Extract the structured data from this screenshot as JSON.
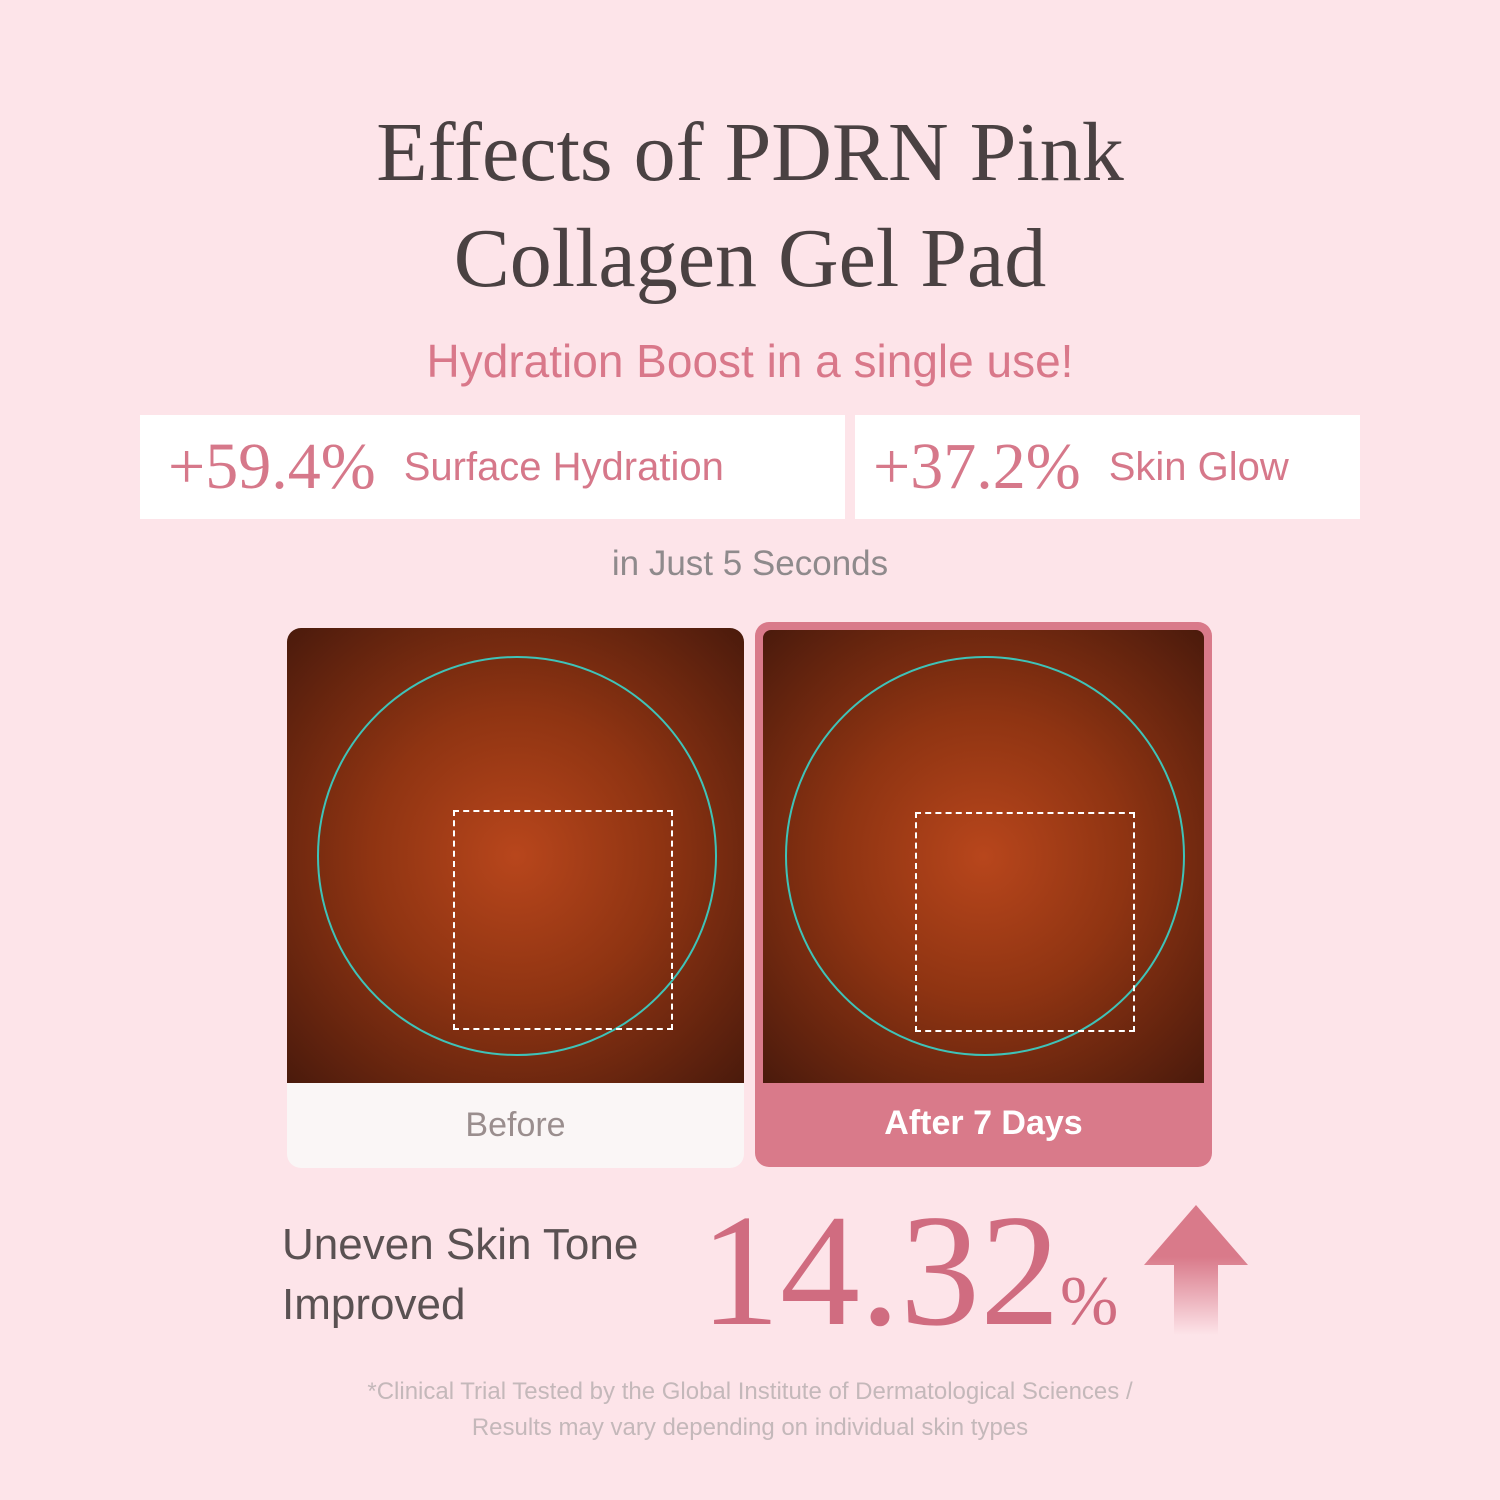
{
  "title": {
    "line1": "Effects of PDRN Pink",
    "line2": "Collagen Gel Pad"
  },
  "subtitle": "Hydration Boost in a single use!",
  "stats": [
    {
      "value": "+59.4%",
      "label": "Surface Hydration"
    },
    {
      "value": "+37.2%",
      "label": "Skin Glow"
    }
  ],
  "timeframe": "in Just 5 Seconds",
  "comparison": {
    "before": "Before",
    "after": "After 7 Days"
  },
  "result": {
    "label_line1": "Uneven Skin Tone",
    "label_line2": "Improved",
    "value": "14.32",
    "unit": "%",
    "icon": "arrow-up-icon"
  },
  "footnote": {
    "line1": "*Clinical Trial Tested by the Global Institute of Dermatological Sciences /",
    "line2": "Results may vary depending on individual skin types"
  },
  "colors": {
    "background": "#fde4e9",
    "accent": "#d97a8a",
    "title": "#4a4142"
  }
}
